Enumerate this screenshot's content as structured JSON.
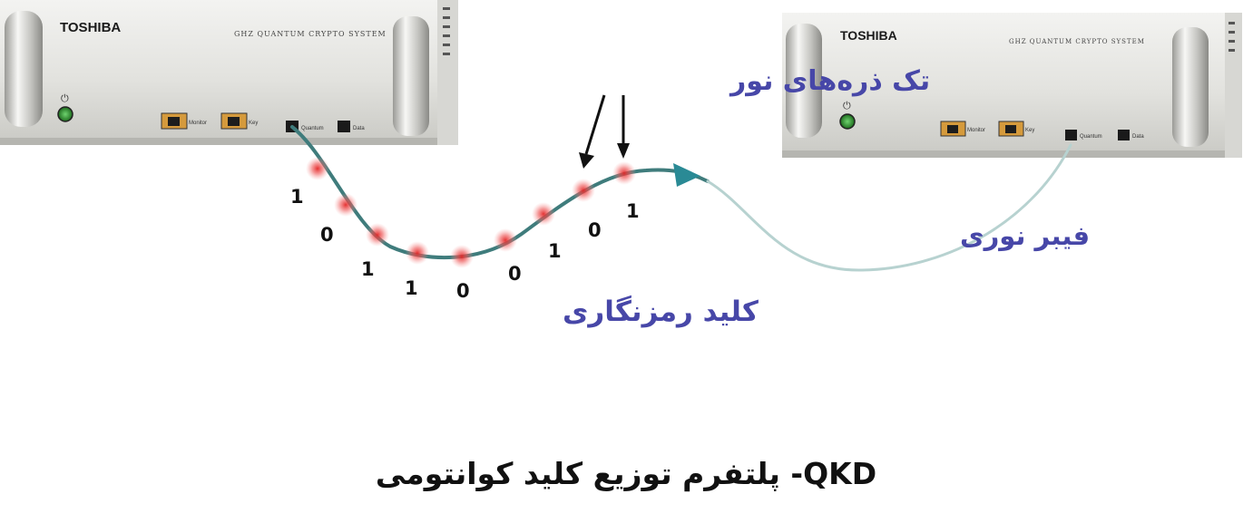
{
  "devices": [
    {
      "brand": "TOSHIBA",
      "model": "GHZ QUANTUM CRYPTO SYSTEM",
      "ports": [
        "Monitor",
        "Key",
        "Quantum",
        "Data"
      ]
    },
    {
      "brand": "TOSHIBA",
      "model": "GHZ QUANTUM CRYPTO SYSTEM",
      "ports": [
        "Monitor",
        "Key",
        "Quantum",
        "Data"
      ]
    }
  ],
  "labels": {
    "photons": "تک ذره‌های نور",
    "fiber": "فیبر نوری",
    "key": "کلید رمزنگاری"
  },
  "bits": [
    "1",
    "0",
    "1",
    "1",
    "0",
    "0",
    "1",
    "0",
    "1"
  ],
  "caption": "QKD- پلتفرم توزیع کلید کوانتومی",
  "colors": {
    "fiber": "#3f7c7c",
    "fiber_light": "#b7d2d0",
    "arrow": "#2a8a95",
    "photon": "#e53a3a",
    "label_blue": "#4747a8"
  }
}
